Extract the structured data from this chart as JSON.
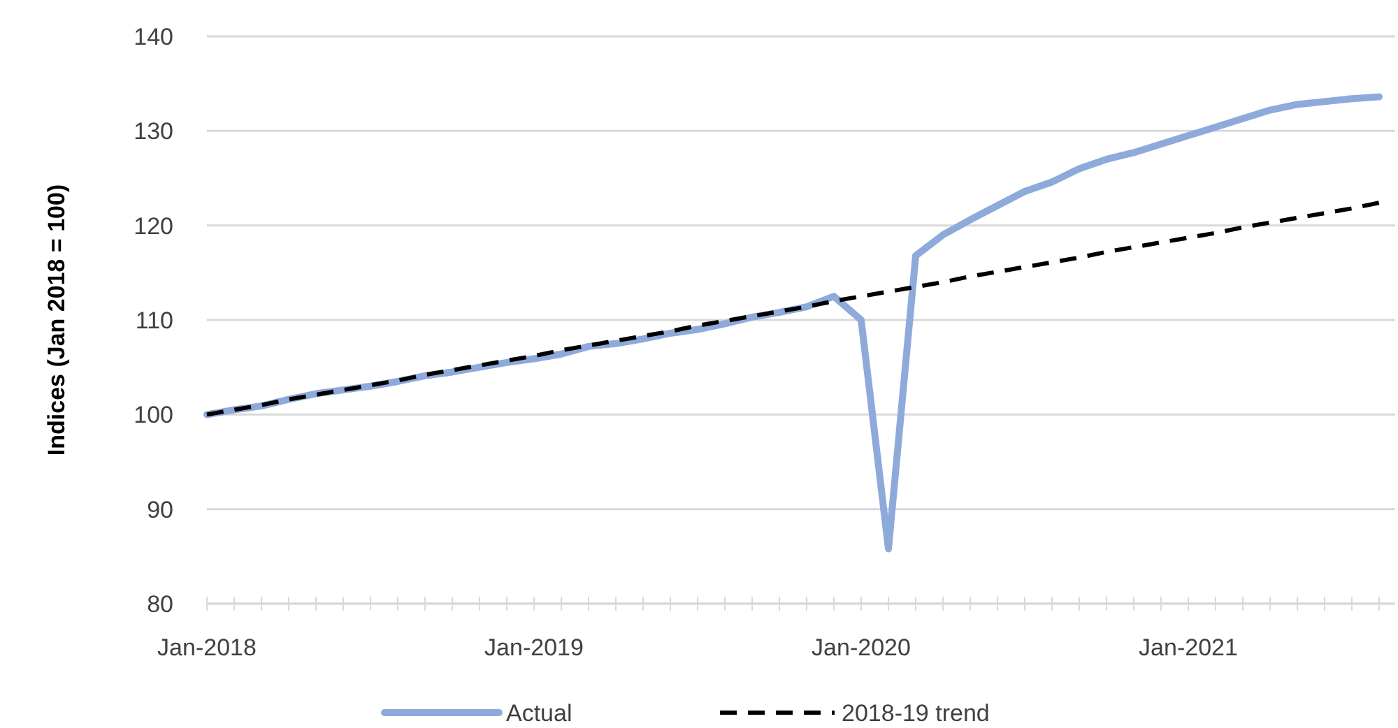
{
  "chart_data": {
    "type": "line",
    "ylabel": "Indices (Jan 2018 = 100)",
    "categories": [
      "Jan-2018",
      null,
      null,
      null,
      null,
      null,
      null,
      null,
      null,
      null,
      null,
      null,
      "Jan-2019",
      null,
      null,
      null,
      null,
      null,
      null,
      null,
      null,
      null,
      null,
      null,
      "Jan-2020",
      null,
      null,
      null,
      null,
      null,
      null,
      null,
      null,
      null,
      null,
      null,
      "Jan-2021",
      null,
      null,
      null,
      null,
      null,
      null,
      null
    ],
    "series": [
      {
        "name": "Actual",
        "color": "#8eaadb",
        "line_style": "solid",
        "values": [
          100,
          100.5,
          100.9,
          101.6,
          102.2,
          102.6,
          103.0,
          103.5,
          104.1,
          104.5,
          105.0,
          105.5,
          105.9,
          106.4,
          107.2,
          107.5,
          108.0,
          108.6,
          109.0,
          109.6,
          110.3,
          110.8,
          111.4,
          112.5,
          110.0,
          85.8,
          116.8,
          119.0,
          120.6,
          122.1,
          123.6,
          124.6,
          126.0,
          127.0,
          127.7,
          128.6,
          129.5,
          130.4,
          131.3,
          132.2,
          132.8,
          133.1,
          133.4,
          133.6
        ]
      },
      {
        "name": "2018-19 trend",
        "color": "#000000",
        "line_style": "dashed",
        "values": [
          100,
          100.5,
          101.0,
          101.6,
          102.1,
          102.6,
          103.1,
          103.6,
          104.2,
          104.7,
          105.2,
          105.7,
          106.2,
          106.8,
          107.3,
          107.8,
          108.3,
          108.8,
          109.4,
          109.9,
          110.4,
          110.9,
          111.4,
          112.0,
          112.5,
          113.0,
          113.5,
          114.0,
          114.6,
          115.1,
          115.6,
          116.1,
          116.6,
          117.2,
          117.7,
          118.2,
          118.7,
          119.2,
          119.8,
          120.3,
          120.8,
          121.3,
          121.8,
          122.4
        ]
      }
    ],
    "ylim": [
      80,
      140
    ],
    "yticks": [
      80,
      90,
      100,
      110,
      120,
      130,
      140
    ],
    "grid": "y",
    "legend": "bottom",
    "marker": "none"
  }
}
